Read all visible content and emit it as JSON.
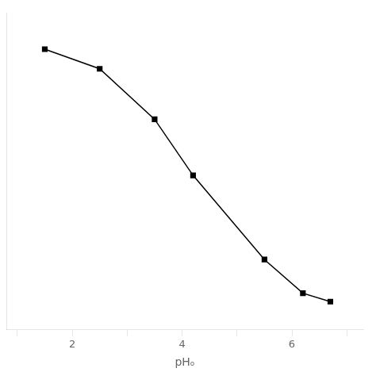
{
  "chart_data": {
    "type": "line",
    "x": [
      1.5,
      2.5,
      3.5,
      4.2,
      5.5,
      6.2,
      6.7
    ],
    "values": [
      97,
      90,
      72,
      52,
      22,
      10,
      7
    ],
    "xlabel": "pHₒ",
    "xlim": [
      0.8,
      7.3
    ],
    "ylim": [
      -3,
      110
    ],
    "xticks": [
      {
        "value": 1,
        "label": null
      },
      2,
      {
        "value": 3,
        "label": null
      },
      4,
      {
        "value": 5,
        "label": null
      },
      6,
      {
        "value": 7,
        "label": null
      }
    ],
    "color": "#000000",
    "marker": "square",
    "grid": false,
    "tick_labels": "x"
  }
}
